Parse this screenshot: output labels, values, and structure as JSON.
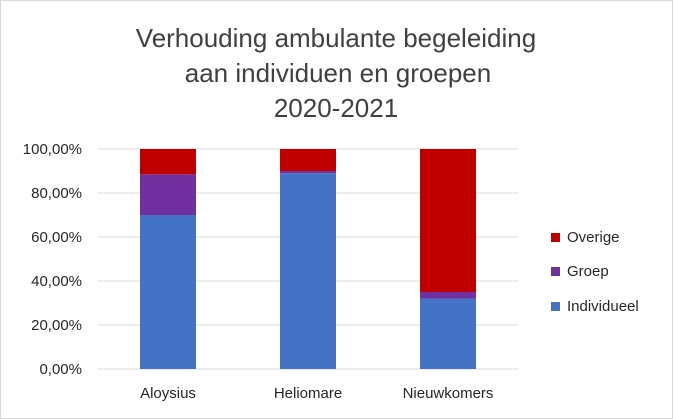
{
  "chart_data": {
    "type": "bar",
    "stacked": "percent",
    "title_lines": [
      "Verhouding ambulante begeleiding",
      "aan individuen en groepen",
      "2020-2021"
    ],
    "categories": [
      "Aloysius",
      "Heliomare",
      "Nieuwkomers"
    ],
    "series": [
      {
        "name": "Individueel",
        "color": "#4472C4",
        "values": [
          70,
          89,
          32
        ]
      },
      {
        "name": "Groep",
        "color": "#7030A0",
        "values": [
          18.5,
          1,
          3
        ]
      },
      {
        "name": "Overige",
        "color": "#C00000",
        "values": [
          11.5,
          10,
          65
        ]
      }
    ],
    "ylim": [
      0,
      100
    ],
    "yticks": [
      0,
      20,
      40,
      60,
      80,
      100
    ],
    "ytick_labels": [
      "0,00%",
      "20,00%",
      "40,00%",
      "60,00%",
      "80,00%",
      "100,00%"
    ],
    "legend_position": "right",
    "legend_order": [
      "Overige",
      "Groep",
      "Individueel"
    ],
    "grid": true,
    "xlabel": "",
    "ylabel": ""
  }
}
